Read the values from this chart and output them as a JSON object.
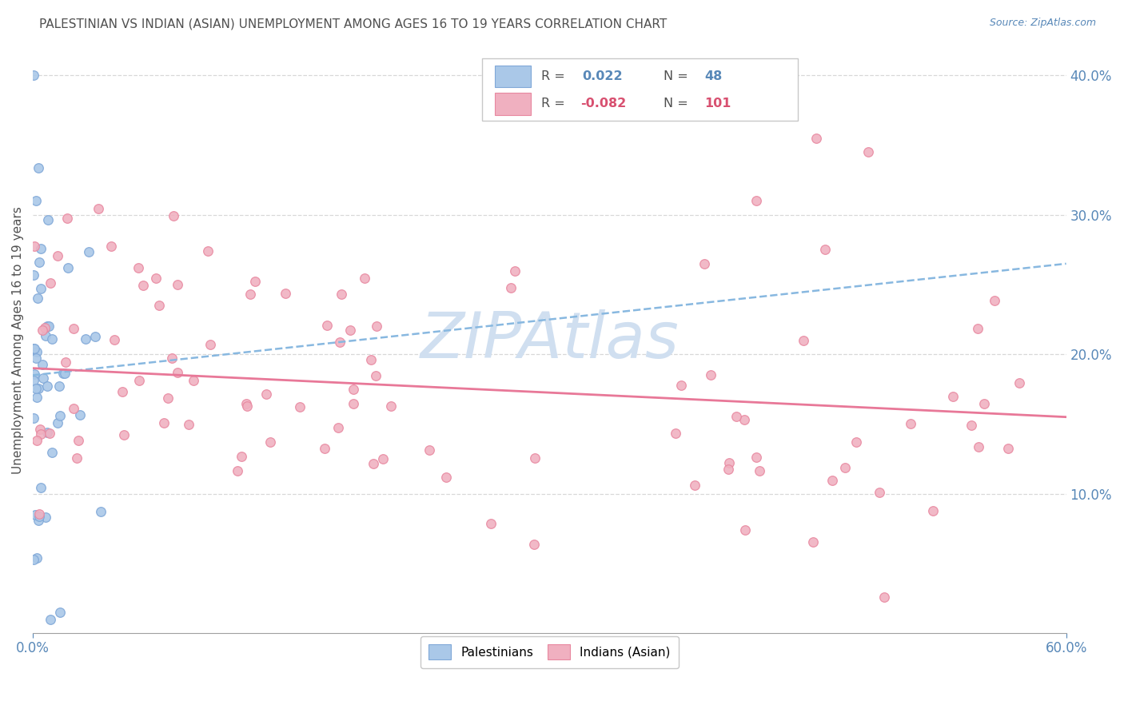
{
  "title": "PALESTINIAN VS INDIAN (ASIAN) UNEMPLOYMENT AMONG AGES 16 TO 19 YEARS CORRELATION CHART",
  "source": "Source: ZipAtlas.com",
  "ylabel": "Unemployment Among Ages 16 to 19 years",
  "right_yticks": [
    "40.0%",
    "30.0%",
    "20.0%",
    "10.0%"
  ],
  "right_ytick_vals": [
    0.4,
    0.3,
    0.2,
    0.1
  ],
  "blue_color": "#aac8e8",
  "pink_color": "#f0b0c0",
  "blue_edge_color": "#80a8d8",
  "pink_edge_color": "#e888a0",
  "blue_line_color": "#88b8e0",
  "pink_line_color": "#e87898",
  "title_color": "#505050",
  "axis_color": "#5888b8",
  "watermark_color": "#d0dff0",
  "background_color": "#ffffff",
  "grid_color": "#d8d8d8",
  "xlim": [
    0.0,
    0.6
  ],
  "ylim": [
    0.0,
    0.42
  ],
  "blue_trend_start_y": 0.185,
  "blue_trend_end_y": 0.265,
  "pink_trend_start_y": 0.19,
  "pink_trend_end_y": 0.155
}
